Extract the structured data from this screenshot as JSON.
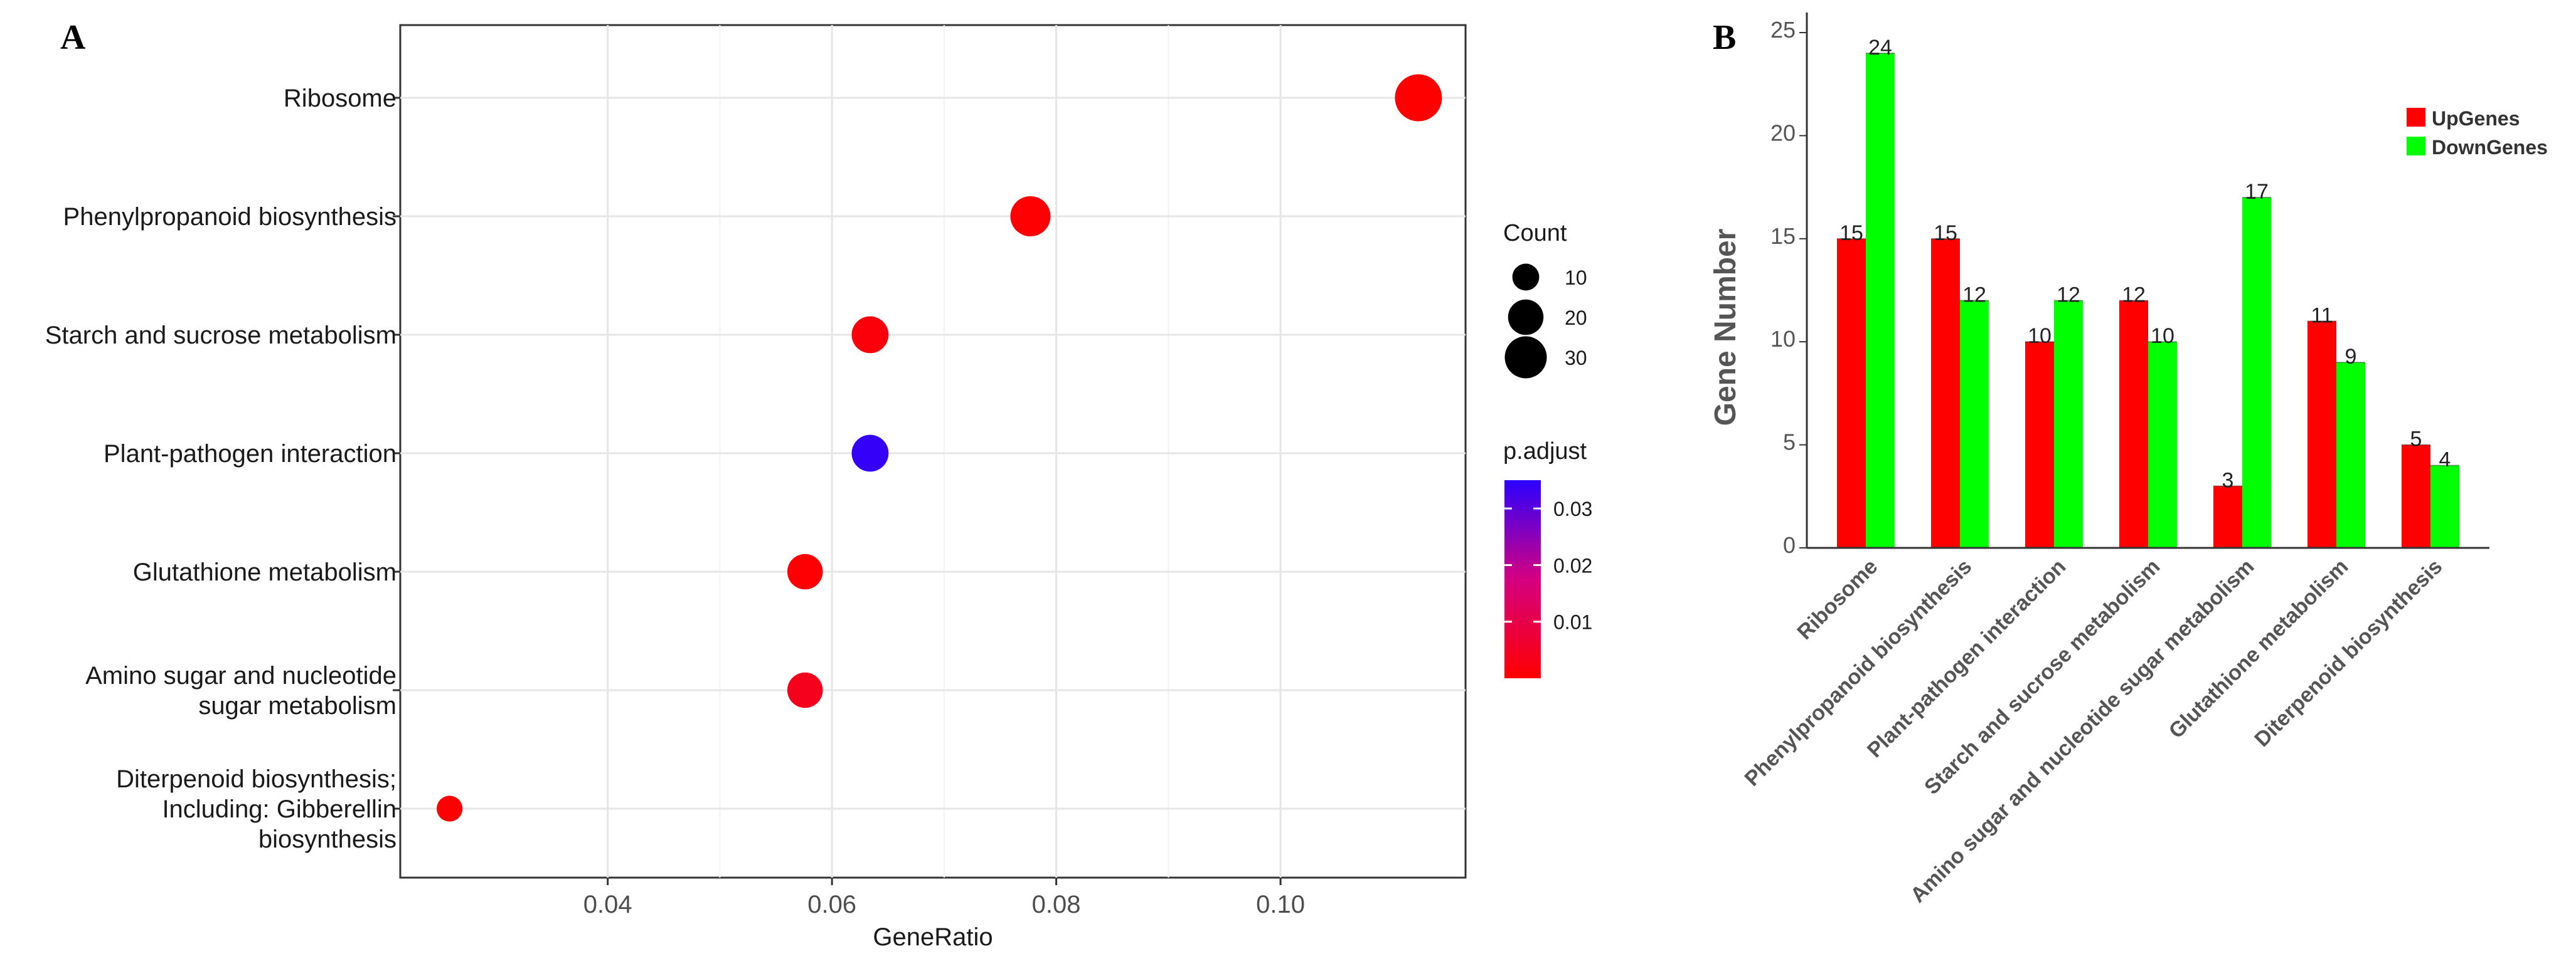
{
  "chart_data": [
    {
      "panel_label": "A",
      "type": "scatter",
      "xlabel": "GeneRatio",
      "ylabel": "",
      "xlim": [
        0.0215,
        0.1165
      ],
      "xticks": [
        0.04,
        0.06,
        0.08,
        0.1
      ],
      "xtick_labels": [
        "0.04",
        "0.06",
        "0.08",
        "0.10"
      ],
      "grid": true,
      "categories": [
        [
          "Ribosome"
        ],
        [
          "Phenylpropanoid biosynthesis"
        ],
        [
          "Starch and sucrose metabolism"
        ],
        [
          "Plant-pathogen interaction"
        ],
        [
          "Glutathione metabolism"
        ],
        [
          "Amino sugar and nucleotide",
          "sugar metabolism"
        ],
        [
          "Diterpenoid biosynthesis;",
          "Including: Gibberellin",
          "biosynthesis"
        ]
      ],
      "points": [
        {
          "term": "Ribosome",
          "gene_ratio": 0.1123,
          "count": 39,
          "p_adjust": 0.0001
        },
        {
          "term": "Phenylpropanoid biosynthesis",
          "gene_ratio": 0.0777,
          "count": 27,
          "p_adjust": 0.0003
        },
        {
          "term": "Starch and sucrose metabolism",
          "gene_ratio": 0.0634,
          "count": 22,
          "p_adjust": 0.0015
        },
        {
          "term": "Plant-pathogen interaction",
          "gene_ratio": 0.0634,
          "count": 22,
          "p_adjust": 0.034
        },
        {
          "term": "Glutathione metabolism",
          "gene_ratio": 0.0576,
          "count": 20,
          "p_adjust": 0.0005
        },
        {
          "term": "Amino sugar and nucleotide sugar metabolism",
          "gene_ratio": 0.0576,
          "count": 20,
          "p_adjust": 0.004
        },
        {
          "term": "Diterpenoid biosynthesis; Including: Gibberellin biosynthesis",
          "gene_ratio": 0.0259,
          "count": 9,
          "p_adjust": 0.0005
        }
      ],
      "size_legend": {
        "title": "Count",
        "values": [
          10,
          20,
          30
        ]
      },
      "color_legend": {
        "title": "p.adjust",
        "ticks": [
          0.03,
          0.02,
          0.01
        ],
        "tick_labels": [
          "0.03",
          "0.02",
          "0.01"
        ],
        "range": [
          0.0,
          0.035
        ],
        "low_color": "#ff0000",
        "mid_color": "#d40080",
        "high_color": "#2b00ff"
      }
    },
    {
      "panel_label": "B",
      "type": "bar",
      "ylabel": "Gene Number",
      "xlabel": "",
      "ylim": [
        0,
        25
      ],
      "yticks": [
        0,
        5,
        10,
        15,
        20,
        25
      ],
      "categories": [
        "Ribosome",
        "Phenylpropanoid biosynthesis",
        "Plant-pathogen interaction",
        "Starch and sucrose metabolism",
        "Amino sugar and nucleotide sugar metabolism",
        "Glutathione metabolism",
        "Diterpenoid biosynthesis"
      ],
      "series": [
        {
          "name": "UpGenes",
          "color": "#ff0000",
          "values": [
            15,
            15,
            10,
            12,
            3,
            11,
            5
          ]
        },
        {
          "name": "DownGenes",
          "color": "#00ff00",
          "values": [
            24,
            12,
            12,
            10,
            17,
            9,
            4
          ]
        }
      ],
      "legend_position": "top-right"
    }
  ]
}
